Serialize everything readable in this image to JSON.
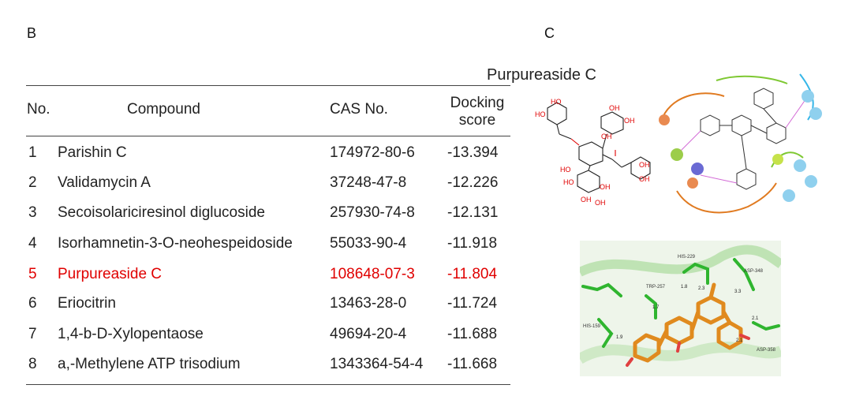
{
  "panels": {
    "b_label": "B",
    "c_label": "C"
  },
  "table": {
    "headers": {
      "no": "No.",
      "compound": "Compound",
      "cas": "CAS No.",
      "score_line1": "Docking",
      "score_line2": "score"
    },
    "rows": [
      {
        "no": "1",
        "compound": "Parishin C",
        "cas": "174972-80-6",
        "score": "-13.394"
      },
      {
        "no": "2",
        "compound": "Validamycin A",
        "cas": "37248-47-8",
        "score": "-12.226"
      },
      {
        "no": "3",
        "compound": "Secoisolariciresinol diglucoside",
        "cas": "257930-74-8",
        "score": "-12.131"
      },
      {
        "no": "4",
        "compound": "Isorhamnetin-3-O-neohespeidoside",
        "cas": "55033-90-4",
        "score": "-11.918"
      },
      {
        "no": "5",
        "compound": "Purpureaside C",
        "cas": "108648-07-3",
        "score": "-11.804",
        "highlight": true
      },
      {
        "no": "6",
        "compound": "Eriocitrin",
        "cas": "13463-28-0",
        "score": "-11.724"
      },
      {
        "no": "7",
        "compound": "1,4-b-D-Xylopentaose",
        "cas": "49694-20-4",
        "score": "-11.688"
      },
      {
        "no": "8",
        "compound": "a,-Methylene ATP trisodium",
        "cas": "1343364-54-4",
        "score": "-11.668"
      }
    ],
    "highlight_color": "#e00000"
  },
  "figure": {
    "title": "Purpureaside C",
    "structure_labels": [
      "HO",
      "HO",
      "OH",
      "OH",
      "HO",
      "OH",
      "HO",
      "OH",
      "OH",
      "OH",
      "OH",
      "OH"
    ],
    "residue_labels": [
      "HIS-159",
      "TRP-257",
      "HIS-229",
      "ASP-348",
      "ASP-350",
      "ASP-358"
    ],
    "distance_labels": [
      "1.9",
      "1.7",
      "1.8",
      "2.3",
      "3.3",
      "2.1",
      "2.1",
      "2.2"
    ]
  }
}
